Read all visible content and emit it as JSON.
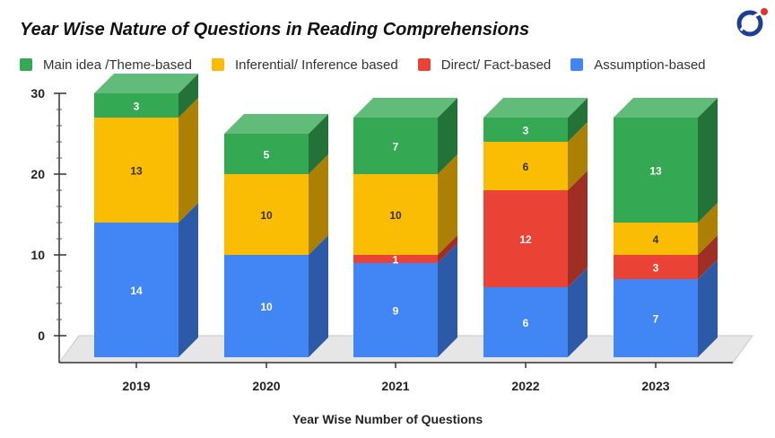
{
  "chart_data": {
    "type": "bar",
    "stacked": true,
    "style": "3d",
    "title": "Year Wise Nature of Questions in Reading Comprehensions",
    "xlabel": "Year Wise Number of Questions",
    "ylabel": "",
    "categories": [
      "2019",
      "2020",
      "2021",
      "2022",
      "2023"
    ],
    "ylim": [
      0,
      30
    ],
    "yticks": [
      0,
      10,
      20,
      30
    ],
    "legend_position": "top",
    "series": [
      {
        "name": "Assumption-based",
        "color": "#4285f4",
        "values": [
          14,
          10,
          9,
          6,
          7
        ]
      },
      {
        "name": "Direct/ Fact-based",
        "color": "#ea4335",
        "values": [
          0,
          0,
          1,
          12,
          3
        ]
      },
      {
        "name": "Inferential/ Inference based",
        "color": "#fbbc04",
        "values": [
          13,
          10,
          10,
          6,
          4
        ]
      },
      {
        "name": "Main idea /Theme-based",
        "color": "#34a853",
        "values": [
          3,
          5,
          7,
          3,
          13
        ]
      }
    ],
    "legend_order": [
      "Main idea /Theme-based",
      "Inferential/ Inference based",
      "Direct/ Fact-based",
      "Assumption-based"
    ]
  },
  "logo": {
    "icon": "brand-logo-icon",
    "colors": [
      "#1c3f94",
      "#e8312f"
    ]
  }
}
